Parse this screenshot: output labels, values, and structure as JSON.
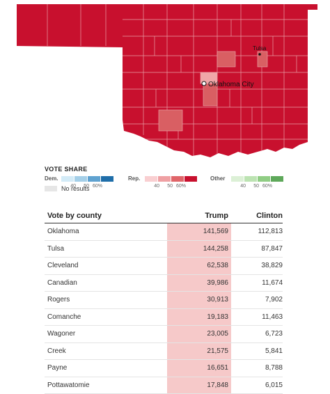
{
  "map": {
    "state": "Oklahoma",
    "cities": [
      {
        "name": "Tulsa"
      },
      {
        "name": "Oklahoma City"
      }
    ],
    "colors": {
      "rep_strong": "#c8102e",
      "rep_medium": "#d95f63",
      "rep_light": "#f0a7a8",
      "county_border": "#e8a0a6"
    }
  },
  "legend": {
    "title": "VOTE SHARE",
    "groups": [
      {
        "label": "Dem.",
        "colors": [
          "#d3ebf7",
          "#a4cfe8",
          "#5fa2d0",
          "#1f6ea9"
        ],
        "ticks": [
          "40",
          "50",
          "60%"
        ]
      },
      {
        "label": "Rep.",
        "colors": [
          "#f9cfd1",
          "#efa0a3",
          "#e06569",
          "#c8102e"
        ],
        "ticks": [
          "40",
          "50",
          "60%"
        ]
      },
      {
        "label": "Other",
        "colors": [
          "#dcf0d6",
          "#bce3b2",
          "#90cd84",
          "#5ea85a"
        ],
        "ticks": [
          "40",
          "50",
          "60%"
        ]
      }
    ],
    "no_results": "No results"
  },
  "table": {
    "headers": {
      "county": "Vote by county",
      "trump": "Trump",
      "clinton": "Clinton"
    },
    "rows": [
      {
        "county": "Oklahoma",
        "trump": "141,569",
        "clinton": "112,813"
      },
      {
        "county": "Tulsa",
        "trump": "144,258",
        "clinton": "87,847"
      },
      {
        "county": "Cleveland",
        "trump": "62,538",
        "clinton": "38,829"
      },
      {
        "county": "Canadian",
        "trump": "39,986",
        "clinton": "11,674"
      },
      {
        "county": "Rogers",
        "trump": "30,913",
        "clinton": "7,902"
      },
      {
        "county": "Comanche",
        "trump": "19,183",
        "clinton": "11,463"
      },
      {
        "county": "Wagoner",
        "trump": "23,005",
        "clinton": "6,723"
      },
      {
        "county": "Creek",
        "trump": "21,575",
        "clinton": "5,841"
      },
      {
        "county": "Payne",
        "trump": "16,651",
        "clinton": "8,788"
      },
      {
        "county": "Pottawatomie",
        "trump": "17,848",
        "clinton": "6,015"
      }
    ]
  }
}
